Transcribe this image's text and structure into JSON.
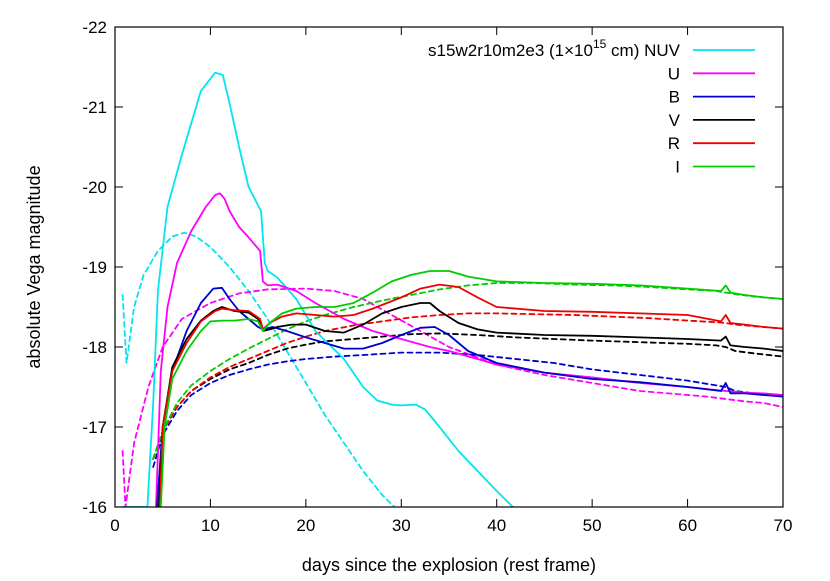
{
  "chart_data": {
    "type": "line",
    "title": "",
    "xlabel": "days since the explosion (rest frame)",
    "ylabel": "absolute Vega magnitude",
    "xlim": [
      0,
      70
    ],
    "ylim": [
      -16,
      -22
    ],
    "y_inverted": true,
    "x_ticks": [
      0,
      10,
      20,
      30,
      40,
      50,
      60,
      70
    ],
    "x_tick_labels": [
      "0",
      "10",
      "20",
      "30",
      "40",
      "50",
      "60",
      "70"
    ],
    "y_ticks": [
      -22,
      -21,
      -20,
      -19,
      -18,
      -17,
      -16
    ],
    "y_tick_labels": [
      "-22",
      "-21",
      "-20",
      "-19",
      "-18",
      "-17",
      "-16"
    ],
    "grid": false,
    "legend_placement": "top-right",
    "legend_title": {
      "prefix": "s15w2r10m2e3 (1×10",
      "exponent": "15",
      "suffix": " cm) NUV"
    },
    "series": [
      {
        "name": "NUV",
        "color": "#00e5ee",
        "style": "solid",
        "x": [
          0.8,
          3.4,
          4.0,
          4.5,
          5.5,
          7,
          9,
          10.5,
          11.3,
          12,
          13,
          14,
          15.3,
          15.7,
          16,
          17,
          19,
          21,
          24,
          26,
          27.5,
          29,
          30,
          31.5,
          32.5,
          34,
          36,
          38,
          40,
          41.7
        ],
        "y": [
          -16,
          -16,
          -17.3,
          -18.7,
          -19.75,
          -20.4,
          -21.2,
          -21.43,
          -21.4,
          -21.05,
          -20.5,
          -20.0,
          -19.7,
          -19.05,
          -18.95,
          -18.87,
          -18.6,
          -18.2,
          -17.85,
          -17.5,
          -17.33,
          -17.28,
          -17.27,
          -17.28,
          -17.22,
          -17.0,
          -16.7,
          -16.45,
          -16.2,
          -16.0
        ]
      },
      {
        "name": "NUV (dashed)",
        "color": "#00e5ee",
        "style": "dashed",
        "x": [
          0.8,
          1.2,
          2,
          3,
          4.5,
          6,
          7.3,
          8.5,
          10,
          12,
          14,
          16,
          18,
          20,
          22,
          24,
          26,
          28,
          29.3
        ],
        "y": [
          -18.65,
          -17.8,
          -18.5,
          -18.9,
          -19.2,
          -19.38,
          -19.43,
          -19.38,
          -19.25,
          -19.0,
          -18.7,
          -18.35,
          -17.95,
          -17.55,
          -17.15,
          -16.8,
          -16.45,
          -16.15,
          -16.0
        ]
      },
      {
        "name": "U",
        "color": "#ff00ff",
        "style": "solid",
        "x": [
          4.3,
          4.8,
          5.5,
          6.5,
          8,
          9.5,
          10.5,
          11,
          11.5,
          12,
          13,
          14,
          15.2,
          15.5,
          16,
          17,
          19,
          21,
          24,
          27,
          30,
          33,
          35,
          38,
          40,
          45,
          50,
          55,
          60,
          64,
          66,
          68,
          70
        ],
        "y": [
          -16.0,
          -17.7,
          -18.5,
          -19.05,
          -19.45,
          -19.75,
          -19.9,
          -19.92,
          -19.85,
          -19.7,
          -19.5,
          -19.37,
          -19.2,
          -18.82,
          -18.77,
          -18.78,
          -18.7,
          -18.55,
          -18.35,
          -18.2,
          -18.1,
          -18.0,
          -17.95,
          -17.85,
          -17.78,
          -17.68,
          -17.62,
          -17.55,
          -17.5,
          -17.45,
          -17.43,
          -17.42,
          -17.4
        ]
      },
      {
        "name": "U (dashed)",
        "color": "#ff00ff",
        "style": "dashed",
        "x": [
          0.8,
          1.1,
          2,
          3.5,
          5,
          7,
          10,
          13,
          16,
          20,
          23,
          26,
          29,
          32,
          35,
          40,
          45,
          50,
          55,
          60,
          62,
          64,
          66,
          68,
          70
        ],
        "y": [
          -16.7,
          -16.0,
          -16.8,
          -17.5,
          -18.0,
          -18.35,
          -18.55,
          -18.67,
          -18.72,
          -18.73,
          -18.7,
          -18.6,
          -18.4,
          -18.2,
          -18.0,
          -17.78,
          -17.65,
          -17.55,
          -17.45,
          -17.4,
          -17.38,
          -17.35,
          -17.32,
          -17.3,
          -17.25
        ]
      },
      {
        "name": "B",
        "color": "#0000cc",
        "style": "solid",
        "x": [
          4.4,
          5,
          6,
          7.5,
          9,
          10.3,
          11.2,
          12,
          13,
          14,
          15,
          15.5,
          16.5,
          18,
          20,
          22,
          24,
          26,
          28,
          30,
          32,
          33.5,
          35,
          37,
          40,
          45,
          50,
          55,
          60,
          63.5,
          64,
          64.5,
          66,
          68,
          70
        ],
        "y": [
          -16.0,
          -17.0,
          -17.7,
          -18.2,
          -18.55,
          -18.73,
          -18.74,
          -18.6,
          -18.45,
          -18.35,
          -18.25,
          -18.22,
          -18.25,
          -18.2,
          -18.12,
          -18.05,
          -17.98,
          -17.98,
          -18.05,
          -18.15,
          -18.24,
          -18.25,
          -18.15,
          -17.95,
          -17.8,
          -17.68,
          -17.6,
          -17.56,
          -17.5,
          -17.45,
          -17.55,
          -17.42,
          -17.42,
          -17.4,
          -17.38
        ]
      },
      {
        "name": "B (dashed)",
        "color": "#0000cc",
        "style": "dashed",
        "x": [
          4,
          5,
          6.5,
          8,
          10,
          12,
          14,
          16,
          18,
          20,
          23,
          26,
          30,
          34,
          38,
          42,
          46,
          50,
          55,
          60,
          63,
          64,
          65,
          67,
          70
        ],
        "y": [
          -16.5,
          -16.9,
          -17.2,
          -17.4,
          -17.55,
          -17.65,
          -17.72,
          -17.78,
          -17.82,
          -17.85,
          -17.88,
          -17.9,
          -17.93,
          -17.93,
          -17.9,
          -17.85,
          -17.8,
          -17.72,
          -17.65,
          -17.58,
          -17.52,
          -17.5,
          -17.45,
          -17.42,
          -17.4
        ]
      },
      {
        "name": "V",
        "color": "#000000",
        "style": "solid",
        "x": [
          4.6,
          5,
          6,
          7.5,
          9,
          10.3,
          11.2,
          12.5,
          14,
          15,
          15.5,
          16.2,
          17,
          18.5,
          20,
          22,
          24,
          26,
          28,
          30,
          32,
          33,
          34,
          36,
          38,
          40,
          45,
          50,
          55,
          60,
          63.5,
          64,
          64.5,
          66,
          68,
          70
        ],
        "y": [
          -16.0,
          -17.0,
          -17.75,
          -18.1,
          -18.33,
          -18.45,
          -18.5,
          -18.45,
          -18.43,
          -18.35,
          -18.2,
          -18.22,
          -18.25,
          -18.28,
          -18.28,
          -18.2,
          -18.18,
          -18.28,
          -18.42,
          -18.5,
          -18.55,
          -18.55,
          -18.45,
          -18.3,
          -18.22,
          -18.18,
          -18.15,
          -18.14,
          -18.12,
          -18.1,
          -18.08,
          -18.13,
          -18.02,
          -18.0,
          -17.98,
          -17.95
        ]
      },
      {
        "name": "V (dashed)",
        "color": "#000000",
        "style": "dashed",
        "x": [
          4,
          5,
          6.5,
          8,
          10,
          12,
          14,
          16,
          18,
          20,
          22,
          25,
          28,
          31,
          34,
          38,
          42,
          46,
          50,
          55,
          60,
          63,
          64,
          65,
          67,
          70
        ],
        "y": [
          -16.6,
          -16.95,
          -17.25,
          -17.45,
          -17.6,
          -17.72,
          -17.8,
          -17.9,
          -17.98,
          -18.03,
          -18.07,
          -18.1,
          -18.13,
          -18.16,
          -18.17,
          -18.15,
          -18.12,
          -18.1,
          -18.08,
          -18.06,
          -18.04,
          -18.02,
          -18.0,
          -17.95,
          -17.92,
          -17.88
        ]
      },
      {
        "name": "R",
        "color": "#ee0000",
        "style": "solid",
        "x": [
          4.7,
          5,
          6,
          7.5,
          9,
          10.5,
          11.2,
          12.5,
          14,
          15.2,
          15.5,
          16.2,
          17.5,
          19,
          21,
          23,
          25,
          27,
          30,
          32,
          34,
          36,
          38,
          40,
          45,
          50,
          55,
          60,
          63.5,
          64,
          64.5,
          66,
          68,
          70
        ],
        "y": [
          -16.0,
          -17.0,
          -17.7,
          -18.05,
          -18.32,
          -18.45,
          -18.48,
          -18.46,
          -18.45,
          -18.35,
          -18.22,
          -18.3,
          -18.38,
          -18.42,
          -18.4,
          -18.38,
          -18.4,
          -18.48,
          -18.62,
          -18.73,
          -18.78,
          -18.75,
          -18.62,
          -18.5,
          -18.45,
          -18.44,
          -18.42,
          -18.4,
          -18.32,
          -18.4,
          -18.3,
          -18.28,
          -18.25,
          -18.23
        ]
      },
      {
        "name": "R (dashed)",
        "color": "#ee0000",
        "style": "dashed",
        "x": [
          4,
          5,
          6.5,
          8,
          10,
          12,
          14,
          16,
          18,
          20,
          22,
          25,
          28,
          31,
          34,
          37,
          40,
          44,
          48,
          52,
          56,
          60,
          63,
          64,
          65,
          67,
          70
        ],
        "y": [
          -16.6,
          -16.95,
          -17.25,
          -17.45,
          -17.62,
          -17.75,
          -17.85,
          -17.95,
          -18.05,
          -18.13,
          -18.2,
          -18.27,
          -18.32,
          -18.37,
          -18.4,
          -18.42,
          -18.42,
          -18.41,
          -18.4,
          -18.38,
          -18.36,
          -18.33,
          -18.31,
          -18.3,
          -18.28,
          -18.26,
          -18.23
        ]
      },
      {
        "name": "I",
        "color": "#00cc00",
        "style": "solid",
        "x": [
          4.8,
          5.2,
          6,
          7.5,
          9,
          10,
          11.2,
          12.5,
          14,
          15,
          15.5,
          16.2,
          17.5,
          19,
          21,
          23,
          25,
          27,
          29,
          31,
          33,
          35,
          37,
          40,
          45,
          50,
          55,
          60,
          63.5,
          64,
          64.5,
          66,
          68,
          70
        ],
        "y": [
          -16.0,
          -17.0,
          -17.6,
          -17.95,
          -18.2,
          -18.32,
          -18.33,
          -18.33,
          -18.35,
          -18.32,
          -18.2,
          -18.3,
          -18.42,
          -18.48,
          -18.5,
          -18.5,
          -18.55,
          -18.68,
          -18.82,
          -18.9,
          -18.95,
          -18.95,
          -18.88,
          -18.82,
          -18.8,
          -18.79,
          -18.77,
          -18.73,
          -18.7,
          -18.77,
          -18.68,
          -18.65,
          -18.62,
          -18.6
        ]
      },
      {
        "name": "I (dashed)",
        "color": "#00cc00",
        "style": "dashed",
        "x": [
          4,
          5,
          6.5,
          8,
          10,
          12,
          14,
          16,
          18,
          20,
          22,
          25,
          28,
          31,
          34,
          37,
          40,
          44,
          48,
          52,
          56,
          60,
          63,
          64,
          65,
          67,
          70
        ],
        "y": [
          -16.6,
          -16.95,
          -17.3,
          -17.52,
          -17.7,
          -17.85,
          -17.98,
          -18.1,
          -18.22,
          -18.32,
          -18.4,
          -18.5,
          -18.58,
          -18.65,
          -18.72,
          -18.77,
          -18.8,
          -18.8,
          -18.78,
          -18.77,
          -18.75,
          -18.72,
          -18.7,
          -18.68,
          -18.66,
          -18.63,
          -18.6
        ]
      }
    ],
    "legend": [
      {
        "label": "NUV",
        "color": "#00e5ee"
      },
      {
        "label": "U",
        "color": "#ff00ff"
      },
      {
        "label": "B",
        "color": "#0000cc"
      },
      {
        "label": "V",
        "color": "#000000"
      },
      {
        "label": "R",
        "color": "#ee0000"
      },
      {
        "label": "I",
        "color": "#00cc00"
      }
    ]
  }
}
